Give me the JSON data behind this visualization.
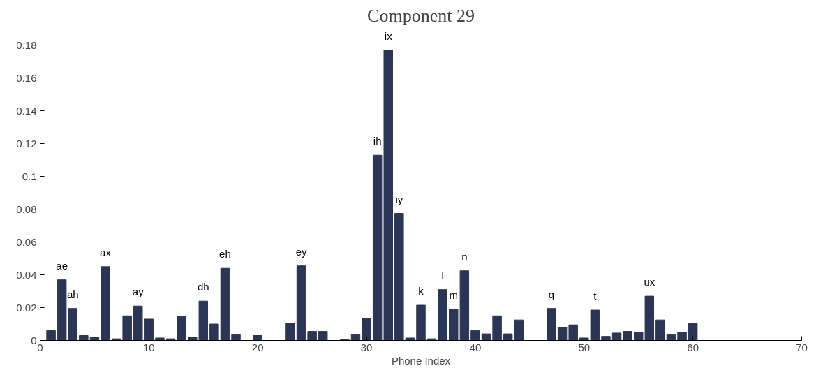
{
  "chart_data": {
    "type": "bar",
    "title": "Component 29",
    "xlabel": "Phone Index",
    "x": [
      1,
      2,
      3,
      4,
      5,
      6,
      7,
      8,
      9,
      10,
      11,
      12,
      13,
      14,
      15,
      16,
      17,
      18,
      19,
      20,
      21,
      22,
      23,
      24,
      25,
      26,
      27,
      28,
      29,
      30,
      31,
      32,
      33,
      34,
      35,
      36,
      37,
      38,
      39,
      40,
      41,
      42,
      43,
      44,
      45,
      46,
      47,
      48,
      49,
      50,
      51,
      52,
      53,
      54,
      55,
      56,
      57,
      58,
      59,
      60,
      61
    ],
    "values": [
      0.006,
      0.037,
      0.0195,
      0.003,
      0.002,
      0.045,
      0.001,
      0.015,
      0.021,
      0.013,
      0.0015,
      0.001,
      0.0145,
      0.002,
      0.024,
      0.01,
      0.044,
      0.0035,
      0,
      0.003,
      0,
      0,
      0.0105,
      0.0455,
      0.0055,
      0.0055,
      0,
      0.0005,
      0.0035,
      0.0135,
      0.113,
      0.177,
      0.0775,
      0.0015,
      0.0215,
      0.001,
      0.031,
      0.019,
      0.0425,
      0.006,
      0.004,
      0.015,
      0.004,
      0.0125,
      0,
      0,
      0.0195,
      0.008,
      0.0095,
      0.0015,
      0.0185,
      0.0025,
      0.0045,
      0.0055,
      0.005,
      0.027,
      0.0125,
      0.0035,
      0.005,
      0.0105,
      0
    ],
    "color": "#2b3556",
    "xlim": [
      0,
      70
    ],
    "xticks": [
      0,
      10,
      20,
      30,
      40,
      50,
      60,
      70
    ],
    "ylim": [
      0,
      0.19
    ],
    "yticks": [
      0,
      0.02,
      0.04,
      0.06,
      0.08,
      0.1,
      0.12,
      0.14,
      0.16,
      0.18
    ],
    "grid": false,
    "annotations": [
      {
        "text": "ae",
        "x": 2,
        "y": 0.037
      },
      {
        "text": "ah",
        "x": 3,
        "y": 0.0195
      },
      {
        "text": "ax",
        "x": 6,
        "y": 0.045
      },
      {
        "text": "ay",
        "x": 9,
        "y": 0.021
      },
      {
        "text": "dh",
        "x": 15,
        "y": 0.024
      },
      {
        "text": "eh",
        "x": 17,
        "y": 0.044
      },
      {
        "text": "ey",
        "x": 24,
        "y": 0.0455
      },
      {
        "text": "ih",
        "x": 31,
        "y": 0.113
      },
      {
        "text": "ix",
        "x": 32,
        "y": 0.177
      },
      {
        "text": "iy",
        "x": 33,
        "y": 0.0775
      },
      {
        "text": "k",
        "x": 35,
        "y": 0.0215
      },
      {
        "text": "l",
        "x": 37,
        "y": 0.031
      },
      {
        "text": "m",
        "x": 38,
        "y": 0.019
      },
      {
        "text": "n",
        "x": 39,
        "y": 0.0425
      },
      {
        "text": "q",
        "x": 47,
        "y": 0.0195
      },
      {
        "text": "t",
        "x": 51,
        "y": 0.0185
      },
      {
        "text": "ux",
        "x": 56,
        "y": 0.027
      }
    ]
  }
}
